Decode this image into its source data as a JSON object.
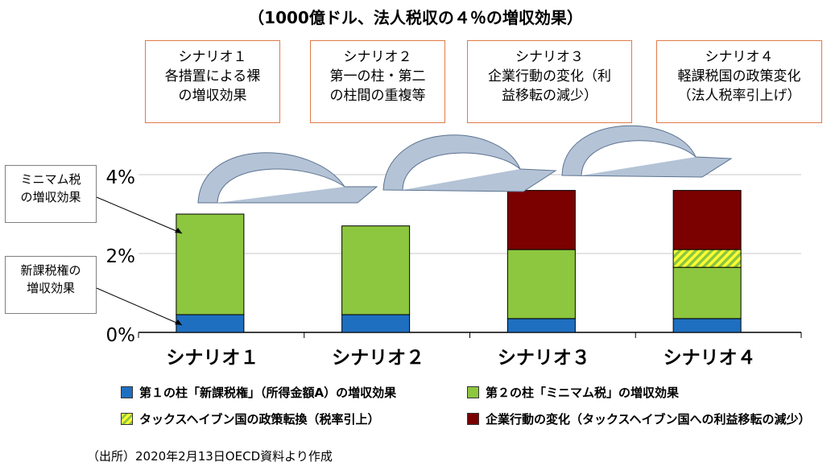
{
  "title": "（1000億ドル、法人税収の４％の増収効果）",
  "scenario_boxes": [
    {
      "line1": "シナリオ１",
      "line2": "各措置による裸",
      "line3": "の増収効果"
    },
    {
      "line1": "シナリオ２",
      "line2": "第一の柱・第二",
      "line3": "の柱間の重複等"
    },
    {
      "line1": "シナリオ３",
      "line2": "企業行動の変化（利",
      "line3": "益移転の減少）"
    },
    {
      "line1": "シナリオ４",
      "line2": "軽課税国の政策変化",
      "line3": "（法人税率引上げ）"
    }
  ],
  "notes": {
    "minimum_tax": {
      "line1": "ミニマム税",
      "line2": "の増収効果"
    },
    "new_taxing_right": {
      "line1": "新課税権の",
      "line2": "増収効果"
    }
  },
  "colors": {
    "pillar1": "#1F6FC0",
    "pillar2": "#8DC63F",
    "policy_change": "#FFFF33",
    "behavior": "#7B0000",
    "arrow_fill": "#B4C3D6",
    "box_border": "#E07A46"
  },
  "chart_data": {
    "type": "bar",
    "stacked": true,
    "categories": [
      "シナリオ１",
      "シナリオ２",
      "シナリオ３",
      "シナリオ４"
    ],
    "series": [
      {
        "name": "第１の柱「新課税権」（所得金額A）の増収効果",
        "values": [
          0.45,
          0.45,
          0.35,
          0.35
        ]
      },
      {
        "name": "第２の柱「ミニマム税」の増収効果",
        "values": [
          2.55,
          2.25,
          1.75,
          1.3
        ]
      },
      {
        "name": "タックスヘイブン国の政策転換（税率引上）",
        "values": [
          0,
          0,
          0,
          0.45
        ]
      },
      {
        "name": "企業行動の変化（タックスヘイブン国への利益移転の減少）",
        "values": [
          0,
          0,
          1.5,
          1.5
        ]
      }
    ],
    "y_ticks": [
      "0%",
      "2%",
      "4%"
    ],
    "ylim": [
      0,
      4
    ],
    "grid": true,
    "legend_position": "bottom"
  },
  "legend_labels": [
    "第１の柱「新課税権」（所得金額A）の増収効果",
    "第２の柱「ミニマム税」の増収効果",
    "タックスヘイブン国の政策転換（税率引上）",
    "企業行動の変化（タックスヘイブン国への利益移転の減少）"
  ],
  "source": "（出所）2020年2月13日OECD資料より作成"
}
